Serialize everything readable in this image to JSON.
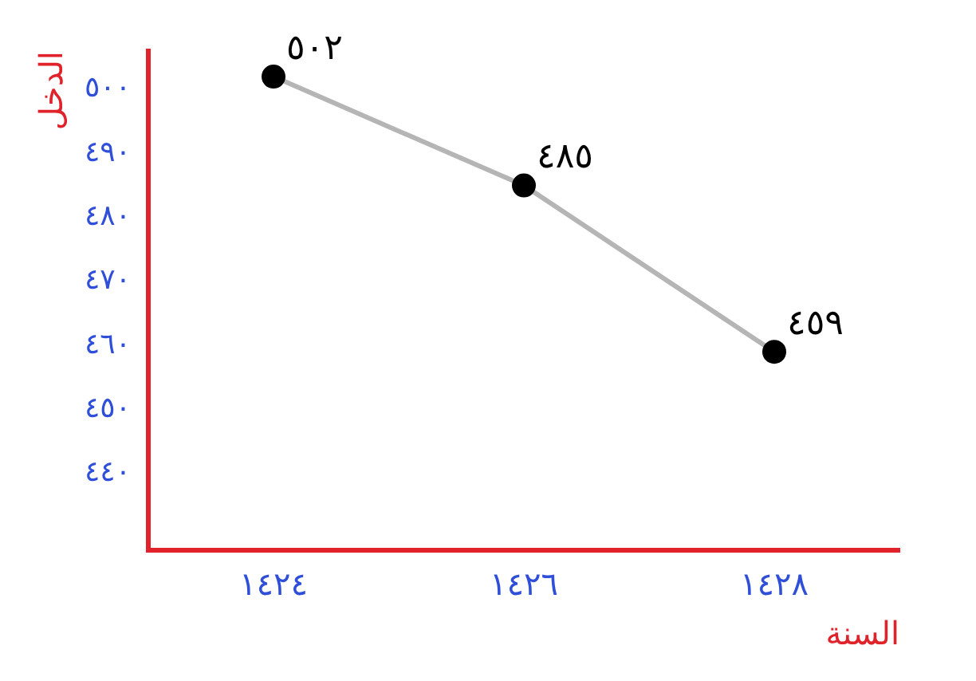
{
  "chart_data": {
    "type": "line",
    "xlabel": "السنة",
    "ylabel": "الدخل",
    "categories": [
      "١٤٢٤",
      "١٤٢٦",
      "١٤٢٨"
    ],
    "series": [
      {
        "color": "#b5b5b5",
        "values": [
          502,
          485,
          459
        ],
        "value_labels": [
          "٥٠٢",
          "٤٨٥",
          "٤٥٩"
        ]
      }
    ],
    "ylim": [
      428,
      506
    ],
    "yticks": [
      {
        "value": 440,
        "label": "٤٤٠"
      },
      {
        "value": 450,
        "label": "٤٥٠"
      },
      {
        "value": 460,
        "label": "٤٦٠"
      },
      {
        "value": 470,
        "label": "٤٧٠"
      },
      {
        "value": 480,
        "label": "٤٨٠"
      },
      {
        "value": 490,
        "label": "٤٩٠"
      },
      {
        "value": 500,
        "label": "٥٠٠"
      }
    ],
    "grid": false,
    "legend": false,
    "marker": "circle",
    "line_style": "solid"
  }
}
